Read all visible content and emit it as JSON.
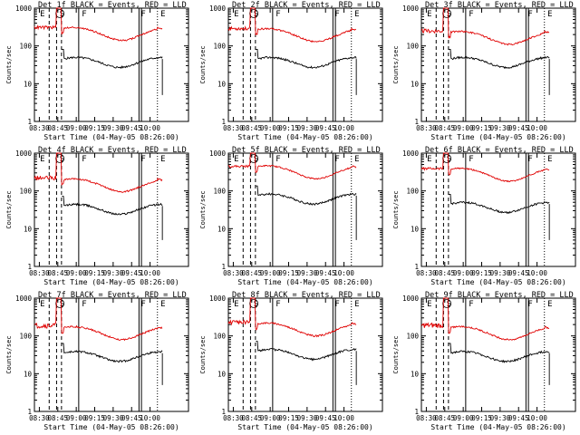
{
  "chart_data": [
    {
      "type": "line",
      "title": "Det  1f BLACK = Events, RED = LLD",
      "xlabel": "Start Time (04-May-05 08:26:00)",
      "ylabel": "Counts/sec",
      "yscale": "log",
      "ylim": [
        1,
        1000
      ],
      "xticks": [
        "08:30",
        "08:45",
        "09:00",
        "09:15",
        "09:30",
        "09:45",
        "10:00"
      ],
      "yticks": [
        "1",
        "10",
        "100",
        "1000"
      ],
      "markers": [
        "E",
        "S",
        "F",
        "F",
        "E"
      ],
      "series": [
        {
          "name": "Events",
          "color": "#000000",
          "level": 45,
          "wiggle": 0.12
        },
        {
          "name": "LLD",
          "color": "#e00000",
          "level": 280,
          "wiggle": 0.1
        }
      ]
    },
    {
      "type": "line",
      "title": "Det  2f BLACK = Events, RED = LLD",
      "xlabel": "Start Time (04-May-05 08:26:00)",
      "ylabel": "Counts/sec",
      "yscale": "log",
      "ylim": [
        1,
        1000
      ],
      "xticks": [
        "08:30",
        "08:45",
        "09:00",
        "09:15",
        "09:30",
        "09:45",
        "10:00"
      ],
      "yticks": [
        "1",
        "10",
        "100",
        "1000"
      ],
      "markers": [
        "E",
        "S",
        "F",
        "F",
        "E"
      ],
      "series": [
        {
          "name": "Events",
          "color": "#000000",
          "level": 45,
          "wiggle": 0.12
        },
        {
          "name": "LLD",
          "color": "#e00000",
          "level": 260,
          "wiggle": 0.1
        }
      ]
    },
    {
      "type": "line",
      "title": "Det  3f BLACK = Events, RED = LLD",
      "xlabel": "Start Time (04-May-05 08:26:00)",
      "ylabel": "Counts/sec",
      "yscale": "log",
      "ylim": [
        1,
        1000
      ],
      "xticks": [
        "08:30",
        "08:45",
        "09:00",
        "09:15",
        "09:30",
        "09:45",
        "10:00"
      ],
      "yticks": [
        "1",
        "10",
        "100",
        "1000"
      ],
      "markers": [
        "E",
        "S",
        "F",
        "F",
        "E"
      ],
      "series": [
        {
          "name": "Events",
          "color": "#000000",
          "level": 45,
          "wiggle": 0.12
        },
        {
          "name": "LLD",
          "color": "#e00000",
          "level": 220,
          "wiggle": 0.1
        }
      ]
    },
    {
      "type": "line",
      "title": "Det  4f BLACK = Events, RED = LLD",
      "xlabel": "Start Time (04-May-05 08:26:00)",
      "ylabel": "Counts/sec",
      "yscale": "log",
      "ylim": [
        1,
        1000
      ],
      "xticks": [
        "08:30",
        "08:45",
        "09:00",
        "09:15",
        "09:30",
        "09:45",
        "10:00"
      ],
      "yticks": [
        "1",
        "10",
        "100",
        "1000"
      ],
      "markers": [
        "E",
        "S",
        "F",
        "F",
        "E"
      ],
      "series": [
        {
          "name": "Events",
          "color": "#000000",
          "level": 40,
          "wiggle": 0.12
        },
        {
          "name": "LLD",
          "color": "#e00000",
          "level": 190,
          "wiggle": 0.1
        }
      ]
    },
    {
      "type": "line",
      "title": "Det  5f BLACK = Events, RED = LLD",
      "xlabel": "Start Time (04-May-05 08:26:00)",
      "ylabel": "Counts/sec",
      "yscale": "log",
      "ylim": [
        1,
        1000
      ],
      "xticks": [
        "08:30",
        "08:45",
        "09:00",
        "09:15",
        "09:30",
        "09:45",
        "10:00"
      ],
      "yticks": [
        "1",
        "10",
        "100",
        "1000"
      ],
      "markers": [
        "E",
        "S",
        "F",
        "F",
        "E"
      ],
      "series": [
        {
          "name": "Events",
          "color": "#000000",
          "level": 75,
          "wiggle": 0.12
        },
        {
          "name": "LLD",
          "color": "#e00000",
          "level": 420,
          "wiggle": 0.08
        }
      ]
    },
    {
      "type": "line",
      "title": "Det  6f BLACK = Events, RED = LLD",
      "xlabel": "Start Time (04-May-05 08:26:00)",
      "ylabel": "Counts/sec",
      "yscale": "log",
      "ylim": [
        1,
        1000
      ],
      "xticks": [
        "08:30",
        "08:45",
        "09:00",
        "09:15",
        "09:30",
        "09:45",
        "10:00"
      ],
      "yticks": [
        "1",
        "10",
        "100",
        "1000"
      ],
      "markers": [
        "E",
        "S",
        "F",
        "F",
        "E"
      ],
      "series": [
        {
          "name": "Events",
          "color": "#000000",
          "level": 45,
          "wiggle": 0.12
        },
        {
          "name": "LLD",
          "color": "#e00000",
          "level": 360,
          "wiggle": 0.08
        }
      ]
    },
    {
      "type": "line",
      "title": "Det  7f BLACK = Events, RED = LLD",
      "xlabel": "Start Time (04-May-05 08:26:00)",
      "ylabel": "Counts/sec",
      "yscale": "log",
      "ylim": [
        1,
        1000
      ],
      "xticks": [
        "08:30",
        "08:45",
        "09:00",
        "09:15",
        "09:30",
        "09:45",
        "10:00"
      ],
      "yticks": [
        "1",
        "10",
        "100",
        "1000"
      ],
      "markers": [
        "E",
        "S",
        "F",
        "F",
        "E"
      ],
      "series": [
        {
          "name": "Events",
          "color": "#000000",
          "level": 35,
          "wiggle": 0.12
        },
        {
          "name": "LLD",
          "color": "#e00000",
          "level": 160,
          "wiggle": 0.1
        }
      ]
    },
    {
      "type": "line",
      "title": "Det  8f BLACK = Events, RED = LLD",
      "xlabel": "Start Time (04-May-05 08:26:00)",
      "ylabel": "Counts/sec",
      "yscale": "log",
      "ylim": [
        1,
        1000
      ],
      "xticks": [
        "08:30",
        "08:45",
        "09:00",
        "09:15",
        "09:30",
        "09:45",
        "10:00"
      ],
      "yticks": [
        "1",
        "10",
        "100",
        "1000"
      ],
      "markers": [
        "E",
        "S",
        "F",
        "F",
        "E"
      ],
      "series": [
        {
          "name": "Events",
          "color": "#000000",
          "level": 40,
          "wiggle": 0.12
        },
        {
          "name": "LLD",
          "color": "#e00000",
          "level": 200,
          "wiggle": 0.1
        }
      ]
    },
    {
      "type": "line",
      "title": "Det  9f BLACK = Events, RED = LLD",
      "xlabel": "Start Time (04-May-05 08:26:00)",
      "ylabel": "Counts/sec",
      "yscale": "log",
      "ylim": [
        1,
        1000
      ],
      "xticks": [
        "08:30",
        "08:45",
        "09:00",
        "09:15",
        "09:30",
        "09:45",
        "10:00"
      ],
      "yticks": [
        "1",
        "10",
        "100",
        "1000"
      ],
      "markers": [
        "E",
        "S",
        "F",
        "F",
        "E"
      ],
      "series": [
        {
          "name": "Events",
          "color": "#000000",
          "level": 35,
          "wiggle": 0.12
        },
        {
          "name": "LLD",
          "color": "#e00000",
          "level": 160,
          "wiggle": 0.1
        }
      ]
    }
  ]
}
